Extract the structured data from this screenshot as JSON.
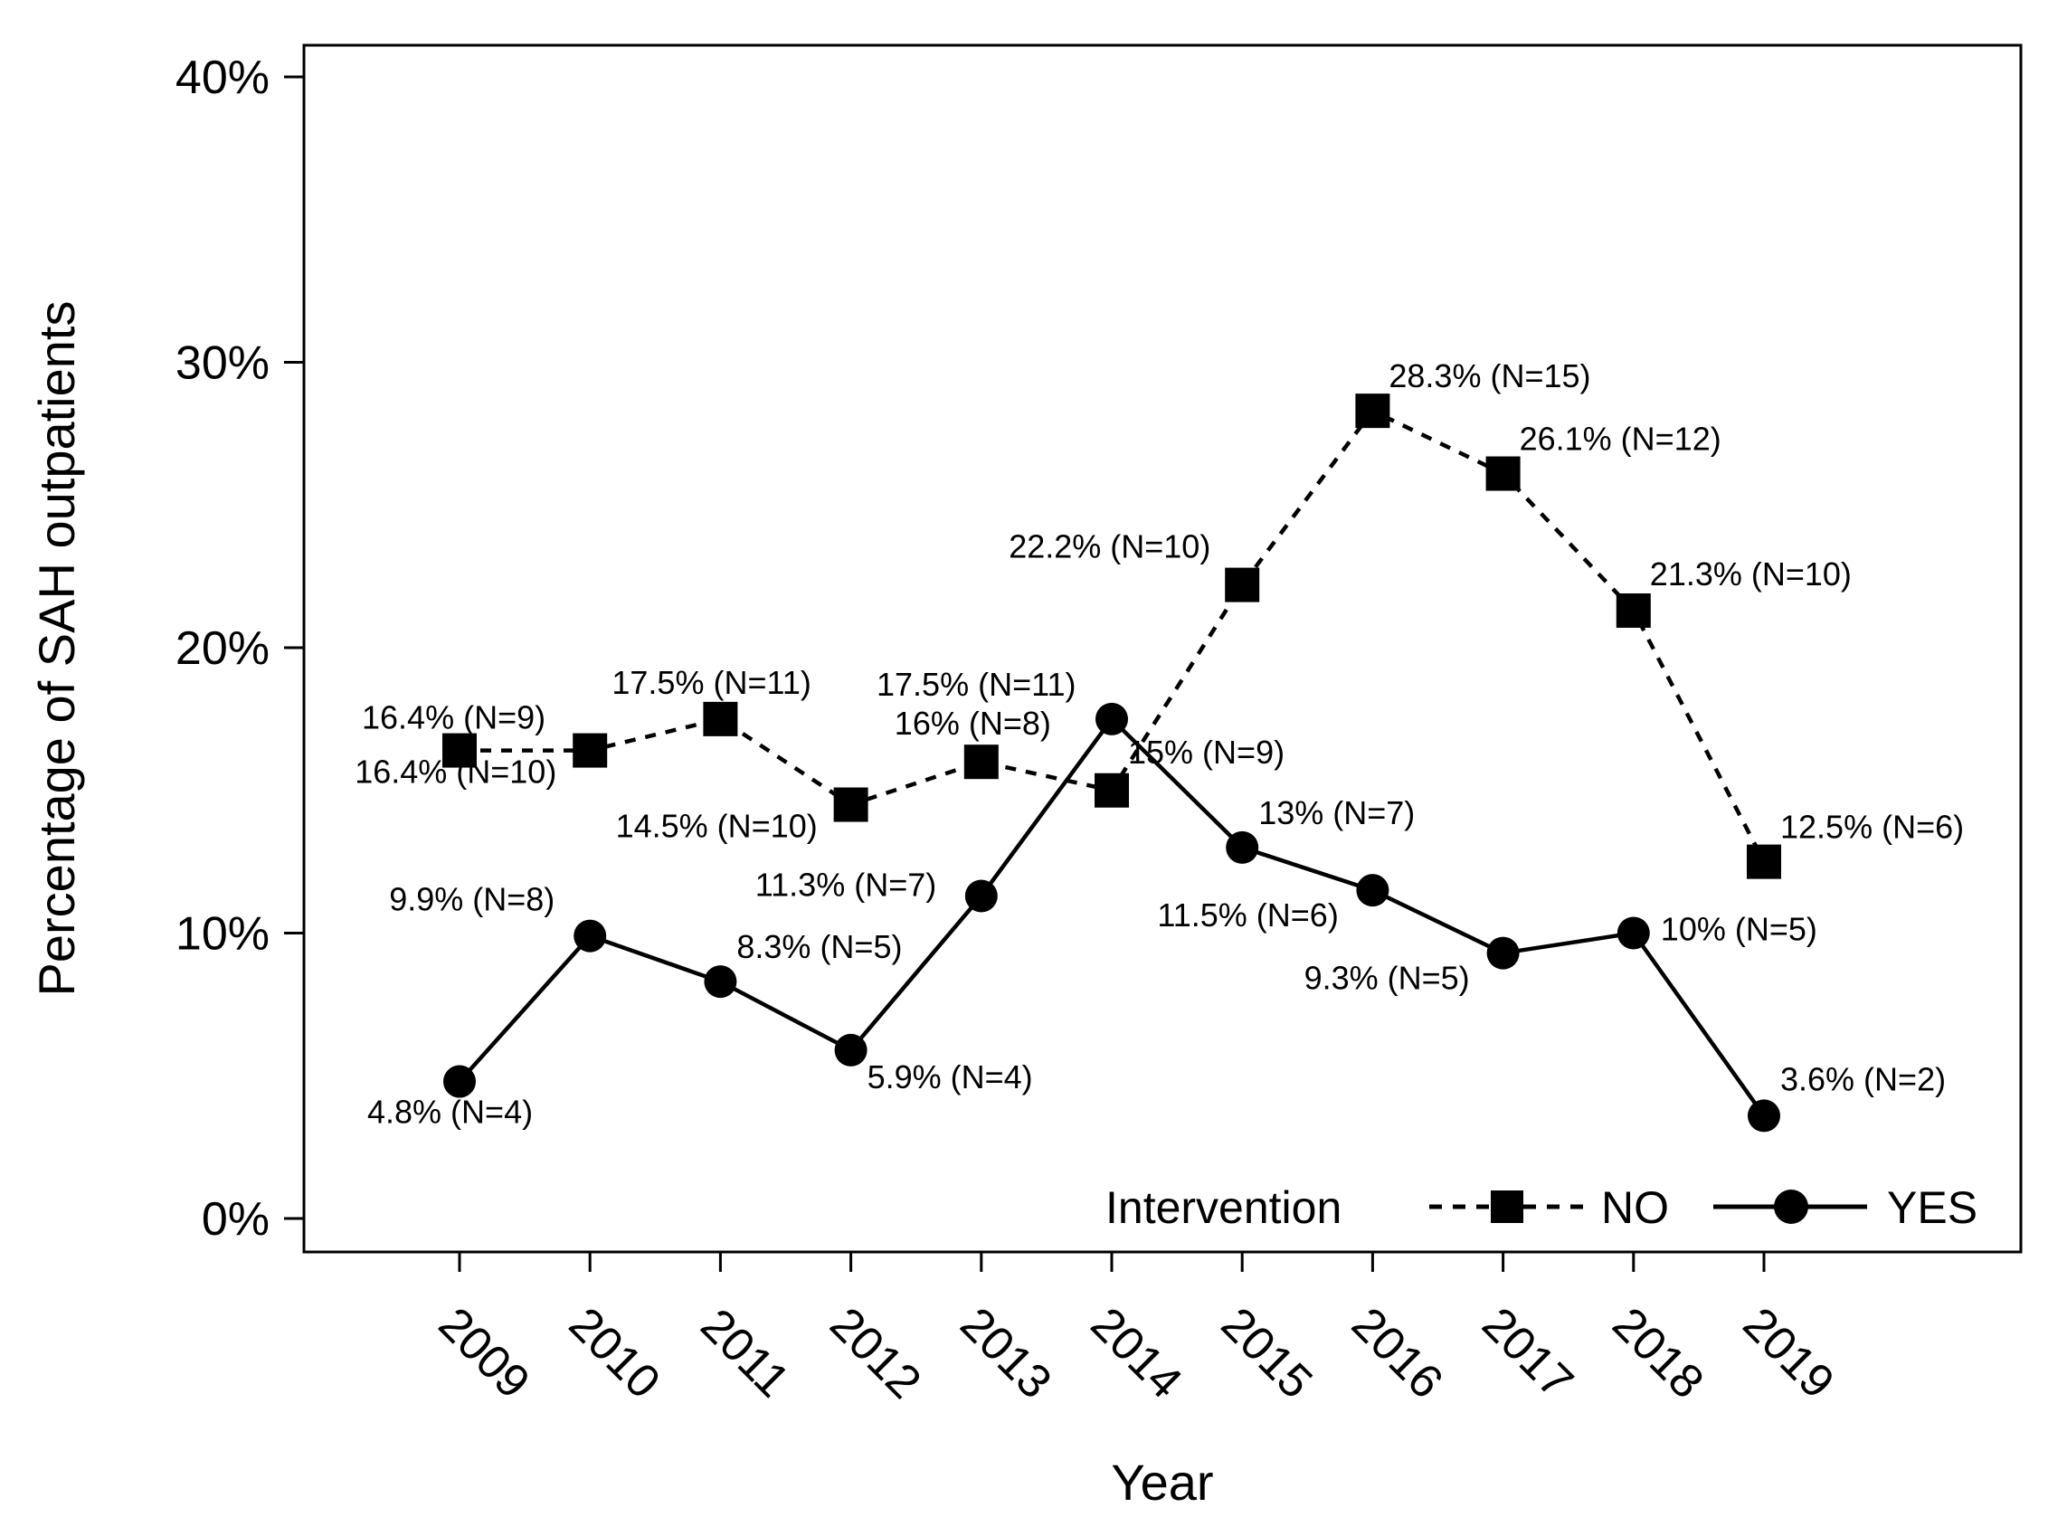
{
  "chart_data": {
    "type": "line",
    "title": "",
    "xlabel": "Year",
    "ylabel": "Percentage of SAH outpatients",
    "ylim": [
      0,
      40
    ],
    "yticks": [
      0,
      10,
      20,
      30,
      40
    ],
    "ytick_labels": [
      "0%",
      "10%",
      "20%",
      "30%",
      "40%"
    ],
    "categories": [
      "2009",
      "2010",
      "2011",
      "2012",
      "2013",
      "2014",
      "2015",
      "2016",
      "2017",
      "2018",
      "2019"
    ],
    "legend": {
      "title": "Intervention",
      "position": "bottom-right"
    },
    "series": [
      {
        "name": "NO",
        "style": "dashed",
        "marker": "square",
        "values": [
          16.4,
          16.4,
          17.5,
          14.5,
          16.0,
          15.0,
          22.2,
          28.3,
          26.1,
          21.3,
          12.5
        ],
        "labels": [
          "16.4% (N=9)",
          "16.4% (N=10)",
          "17.5% (N=11)",
          "14.5% (N=10)",
          "16% (N=8)",
          "15% (N=9)",
          "22.2% (N=10)",
          "28.3% (N=15)",
          "26.1% (N=12)",
          "21.3% (N=10)",
          "12.5% (N=6)"
        ]
      },
      {
        "name": "YES",
        "style": "solid",
        "marker": "circle",
        "values": [
          4.8,
          9.9,
          8.3,
          5.9,
          11.3,
          17.5,
          13.0,
          11.5,
          9.3,
          10.0,
          3.6
        ],
        "labels": [
          "4.8% (N=4)",
          "9.9% (N=8)",
          "8.3% (N=5)",
          "5.9% (N=4)",
          "11.3% (N=7)",
          "17.5% (N=11)",
          "13% (N=7)",
          "11.5% (N=6)",
          "9.3% (N=5)",
          "10% (N=5)",
          "3.6% (N=2)"
        ]
      }
    ],
    "colors": {
      "line": "#000000",
      "background": "#ffffff"
    }
  }
}
